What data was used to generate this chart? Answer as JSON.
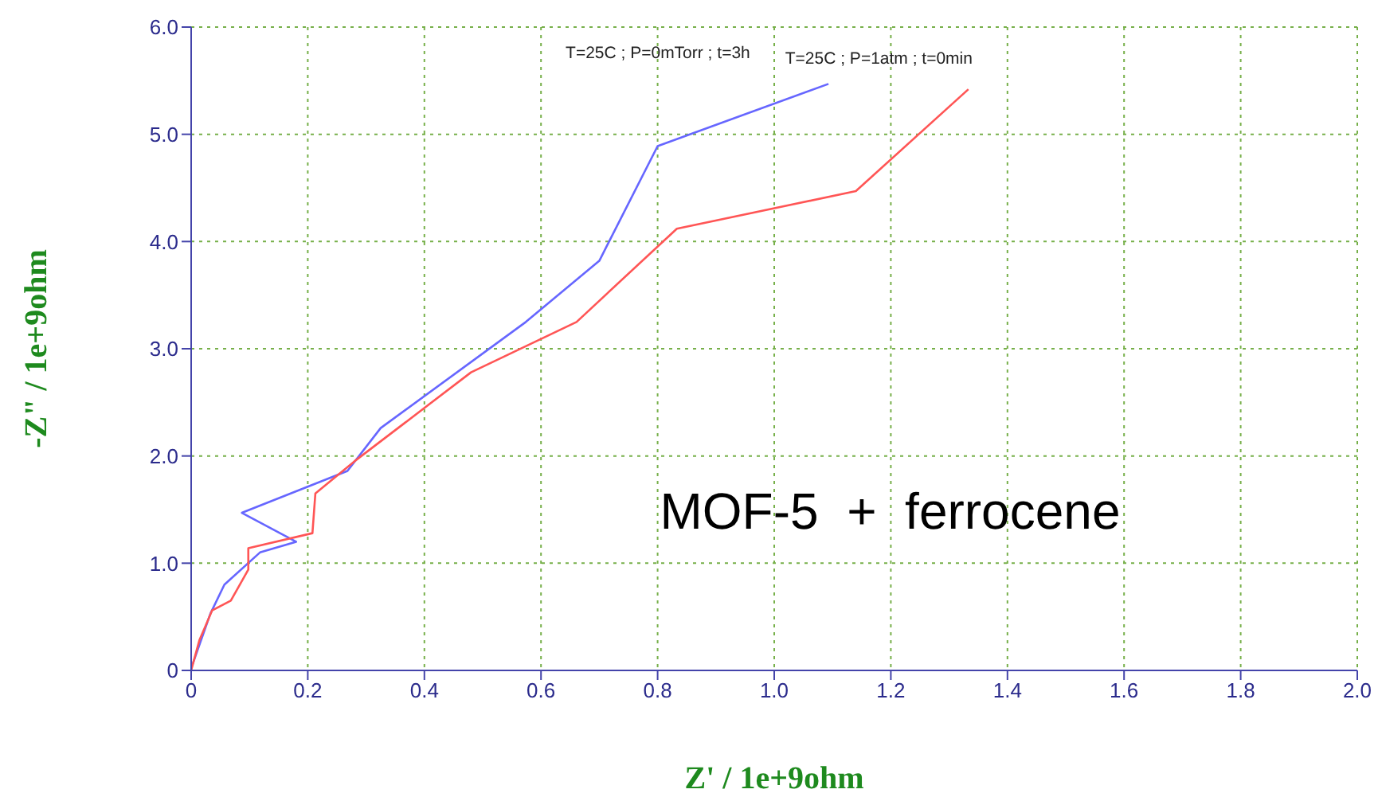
{
  "chart_data": {
    "type": "line",
    "xlabel": "Z' / 1e+9ohm",
    "ylabel": "-Z\" / 1e+9ohm",
    "annotations": [
      "MOF-5  +  ferrocene"
    ],
    "series": [
      {
        "name": "T=25C ; P=0mTorr ; t=3h",
        "color": "#6666ff",
        "x": [
          0,
          0.033,
          0.057,
          0.118,
          0.18,
          0.087,
          0.268,
          0.325,
          0.574,
          0.7,
          0.8,
          1.093
        ],
        "values": [
          0.02,
          0.53,
          0.8,
          1.1,
          1.2,
          1.47,
          1.86,
          2.26,
          3.25,
          3.82,
          4.89,
          5.47
        ]
      },
      {
        "name": "T=25C ; P=1atm ; t=0min",
        "color": "#ff5555",
        "x": [
          0,
          0.014,
          0.036,
          0.068,
          0.098,
          0.098,
          0.208,
          0.213,
          0.28,
          0.48,
          0.661,
          0.833,
          1.14,
          1.333
        ],
        "values": [
          0,
          0.28,
          0.56,
          0.65,
          0.94,
          1.14,
          1.28,
          1.65,
          1.95,
          2.78,
          3.25,
          4.12,
          4.47,
          5.42
        ]
      }
    ],
    "xlim": [
      0,
      2
    ],
    "ylim": [
      0,
      6
    ],
    "xticks": [
      0,
      0.2,
      0.4,
      0.6,
      0.8,
      {
        "value": 1,
        "label": "1.0"
      },
      1.2,
      1.4,
      1.6,
      1.8,
      {
        "value": 2,
        "label": "2.0"
      }
    ],
    "yticks": [
      0,
      {
        "value": 1,
        "label": "1.0"
      },
      {
        "value": 2,
        "label": "2.0"
      },
      {
        "value": 3,
        "label": "3.0"
      },
      {
        "value": 4,
        "label": "4.0"
      },
      {
        "value": 5,
        "label": "5.0"
      },
      {
        "value": 6,
        "label": "6.0"
      }
    ],
    "grid": true,
    "marker": "none",
    "line_style": "solid"
  }
}
